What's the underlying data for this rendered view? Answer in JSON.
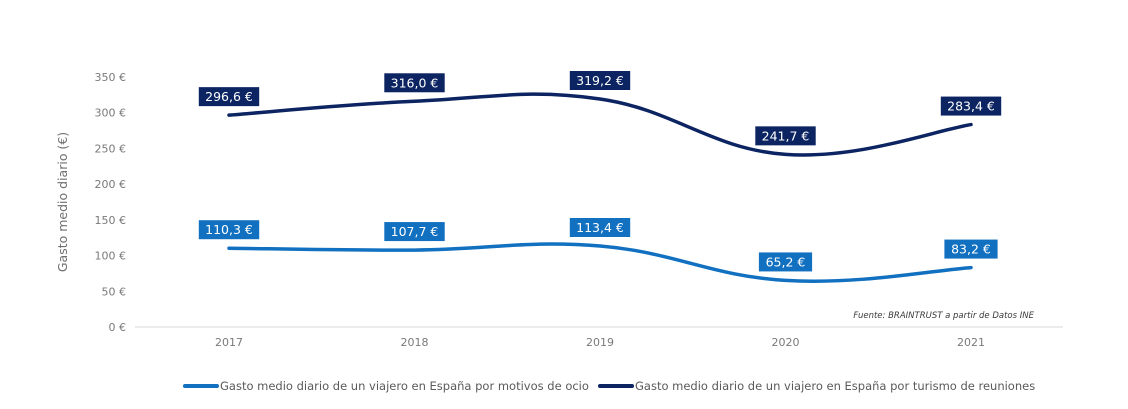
{
  "chart_data": {
    "type": "line",
    "title": "",
    "xlabel": "",
    "ylabel": "Gasto medio diario (€)",
    "x": [
      "2017",
      "2018",
      "2019",
      "2020",
      "2021"
    ],
    "ylim": [
      0,
      350
    ],
    "yticks": [
      0,
      50,
      100,
      150,
      200,
      250,
      300,
      350
    ],
    "ytick_labels": [
      "0 €",
      "50 €",
      "100 €",
      "150 €",
      "200 €",
      "250 €",
      "300 €",
      "350 €"
    ],
    "grid": false,
    "legend_position": "bottom",
    "series": [
      {
        "name": "Gasto medio diario de un viajero en España por motivos de ocio",
        "color": "#1170c0",
        "values": [
          110.3,
          107.7,
          113.4,
          65.2,
          83.2
        ],
        "labels": [
          "110,3 €",
          "107,7 €",
          "113,4 €",
          "65,2 €",
          "83,2 €"
        ]
      },
      {
        "name": "Gasto medio diario de un viajero en España por turismo de reuniones",
        "color": "#0c2461",
        "values": [
          296.6,
          316.0,
          319.2,
          241.7,
          283.4
        ],
        "labels": [
          "296,6 €",
          "316,0 €",
          "319,2 €",
          "241,7 €",
          "283,4 €"
        ]
      }
    ],
    "annotation": "Fuente: BRAINTRUST a partir de Datos INE"
  }
}
